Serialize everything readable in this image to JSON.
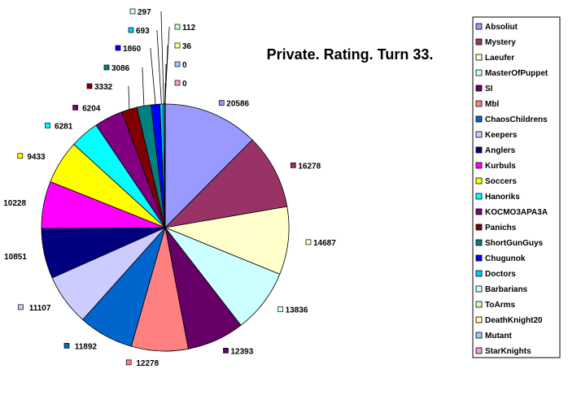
{
  "chart_data": {
    "type": "pie",
    "title": "Private. Rating. Turn 33.",
    "start": "12 o'clock, clockwise",
    "legend_position": "right",
    "categories": [
      "Absoliut",
      "Mystery",
      "Laeufer",
      "MasterOfPuppet",
      "SI",
      "Mbl",
      "ChaosChildrens",
      "Keepers",
      "Anglers",
      "Kurbuls",
      "Soccers",
      "Hanoriks",
      "KOCMO3APA3A",
      "Panichs",
      "ShortGunGuys",
      "Chugunok",
      "Doctors",
      "Barbarians",
      "ToArms",
      "DeathKnight20",
      "Mutant",
      "StarKnights"
    ],
    "values": [
      20586,
      16278,
      14687,
      13836,
      12393,
      12278,
      11892,
      11107,
      10851,
      10228,
      9433,
      6281,
      6204,
      3332,
      3086,
      1860,
      693,
      297,
      112,
      36,
      0,
      0
    ],
    "colors": [
      "#9999ff",
      "#993366",
      "#ffffcc",
      "#ccffff",
      "#660066",
      "#ff8080",
      "#0066cc",
      "#ccccff",
      "#000080",
      "#ff00ff",
      "#ffff00",
      "#00ffff",
      "#800080",
      "#800000",
      "#008080",
      "#0000ff",
      "#00ccff",
      "#ccffff",
      "#ccffcc",
      "#ffff99",
      "#99ccff",
      "#ff99cc"
    ]
  }
}
